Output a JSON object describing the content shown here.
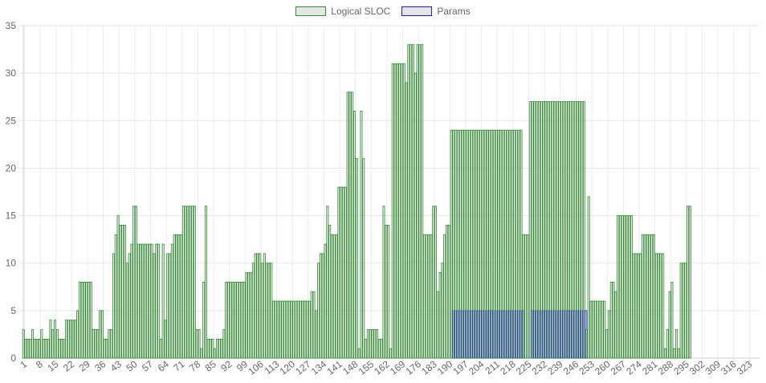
{
  "chart_data": {
    "type": "bar",
    "title": "",
    "xlabel": "",
    "ylabel": "",
    "ylim": [
      0,
      35
    ],
    "y_ticks": [
      "0",
      "5",
      "10",
      "15",
      "20",
      "25",
      "30",
      "35"
    ],
    "x_tick_labels": [
      "1",
      "8",
      "15",
      "22",
      "29",
      "36",
      "43",
      "50",
      "57",
      "64",
      "71",
      "78",
      "85",
      "92",
      "99",
      "106",
      "113",
      "120",
      "127",
      "134",
      "141",
      "148",
      "155",
      "162",
      "169",
      "176",
      "183",
      "190",
      "197",
      "204",
      "211",
      "218",
      "225",
      "232",
      "239",
      "246",
      "253",
      "260",
      "267",
      "274",
      "281",
      "288",
      "295",
      "302",
      "309",
      "316",
      "323"
    ],
    "grid": true,
    "legend_position": "top",
    "x_start": 1,
    "x_end": 327,
    "series": [
      {
        "name": "Logical SLOC",
        "color": "#2e8b2e",
        "segments": [
          [
            1,
            1,
            3
          ],
          [
            2,
            4,
            2
          ],
          [
            5,
            5,
            3
          ],
          [
            6,
            8,
            2
          ],
          [
            9,
            9,
            3
          ],
          [
            10,
            12,
            2
          ],
          [
            13,
            13,
            4
          ],
          [
            14,
            14,
            3
          ],
          [
            15,
            15,
            4
          ],
          [
            16,
            16,
            3
          ],
          [
            17,
            19,
            2
          ],
          [
            20,
            24,
            4
          ],
          [
            25,
            25,
            5
          ],
          [
            26,
            31,
            8
          ],
          [
            32,
            34,
            3
          ],
          [
            35,
            36,
            5
          ],
          [
            37,
            38,
            2
          ],
          [
            39,
            40,
            3
          ],
          [
            41,
            41,
            11
          ],
          [
            42,
            42,
            13
          ],
          [
            43,
            43,
            15
          ],
          [
            44,
            46,
            14
          ],
          [
            47,
            47,
            10
          ],
          [
            48,
            48,
            11
          ],
          [
            49,
            49,
            12
          ],
          [
            50,
            51,
            16
          ],
          [
            52,
            58,
            12
          ],
          [
            59,
            59,
            11
          ],
          [
            60,
            61,
            12
          ],
          [
            62,
            62,
            2
          ],
          [
            63,
            63,
            12
          ],
          [
            64,
            64,
            4
          ],
          [
            65,
            66,
            11
          ],
          [
            67,
            67,
            12
          ],
          [
            68,
            71,
            13
          ],
          [
            72,
            77,
            16
          ],
          [
            78,
            79,
            3
          ],
          [
            80,
            80,
            1
          ],
          [
            81,
            81,
            8
          ],
          [
            82,
            82,
            16
          ],
          [
            83,
            85,
            2
          ],
          [
            86,
            86,
            1
          ],
          [
            87,
            89,
            2
          ],
          [
            90,
            90,
            3
          ],
          [
            91,
            99,
            8
          ],
          [
            100,
            100,
            9
          ],
          [
            101,
            102,
            9
          ],
          [
            103,
            103,
            10
          ],
          [
            104,
            106,
            11
          ],
          [
            107,
            107,
            10
          ],
          [
            108,
            108,
            11
          ],
          [
            109,
            111,
            10
          ],
          [
            112,
            128,
            6
          ],
          [
            129,
            130,
            7
          ],
          [
            131,
            131,
            5
          ],
          [
            132,
            132,
            10
          ],
          [
            133,
            134,
            11
          ],
          [
            135,
            135,
            12
          ],
          [
            136,
            136,
            16
          ],
          [
            137,
            137,
            14
          ],
          [
            138,
            138,
            13
          ],
          [
            139,
            140,
            13
          ],
          [
            141,
            144,
            18
          ],
          [
            145,
            147,
            28
          ],
          [
            148,
            148,
            26
          ],
          [
            149,
            149,
            21
          ],
          [
            150,
            150,
            1
          ],
          [
            151,
            151,
            26
          ],
          [
            152,
            152,
            21
          ],
          [
            153,
            153,
            2
          ],
          [
            154,
            158,
            3
          ],
          [
            159,
            159,
            2
          ],
          [
            160,
            160,
            2
          ],
          [
            161,
            161,
            16
          ],
          [
            162,
            163,
            14
          ],
          [
            164,
            164,
            1
          ],
          [
            165,
            170,
            31
          ],
          [
            171,
            171,
            29
          ],
          [
            172,
            174,
            33
          ],
          [
            175,
            175,
            30
          ],
          [
            176,
            178,
            33
          ],
          [
            179,
            179,
            13
          ],
          [
            180,
            182,
            13
          ],
          [
            183,
            184,
            16
          ],
          [
            185,
            185,
            7
          ],
          [
            186,
            186,
            9
          ],
          [
            187,
            187,
            10
          ],
          [
            188,
            188,
            13
          ],
          [
            189,
            190,
            14
          ],
          [
            191,
            222,
            24
          ],
          [
            223,
            225,
            13
          ],
          [
            226,
            250,
            27
          ],
          [
            251,
            251,
            3
          ],
          [
            252,
            252,
            17
          ],
          [
            253,
            259,
            6
          ],
          [
            260,
            260,
            3
          ],
          [
            261,
            261,
            5
          ],
          [
            262,
            263,
            8
          ],
          [
            264,
            264,
            7
          ],
          [
            265,
            271,
            15
          ],
          [
            272,
            272,
            11
          ],
          [
            273,
            273,
            11
          ],
          [
            274,
            275,
            11
          ],
          [
            276,
            281,
            13
          ],
          [
            282,
            285,
            11
          ],
          [
            286,
            286,
            1
          ],
          [
            287,
            287,
            3
          ],
          [
            288,
            288,
            7
          ],
          [
            289,
            289,
            8
          ],
          [
            290,
            290,
            1
          ],
          [
            291,
            291,
            3
          ],
          [
            292,
            292,
            1
          ],
          [
            293,
            295,
            10
          ],
          [
            296,
            297,
            16
          ]
        ]
      },
      {
        "name": "Params",
        "color": "#1a1acc",
        "segments": [
          [
            191,
            222,
            5
          ],
          [
            226,
            250,
            5
          ]
        ]
      }
    ]
  }
}
